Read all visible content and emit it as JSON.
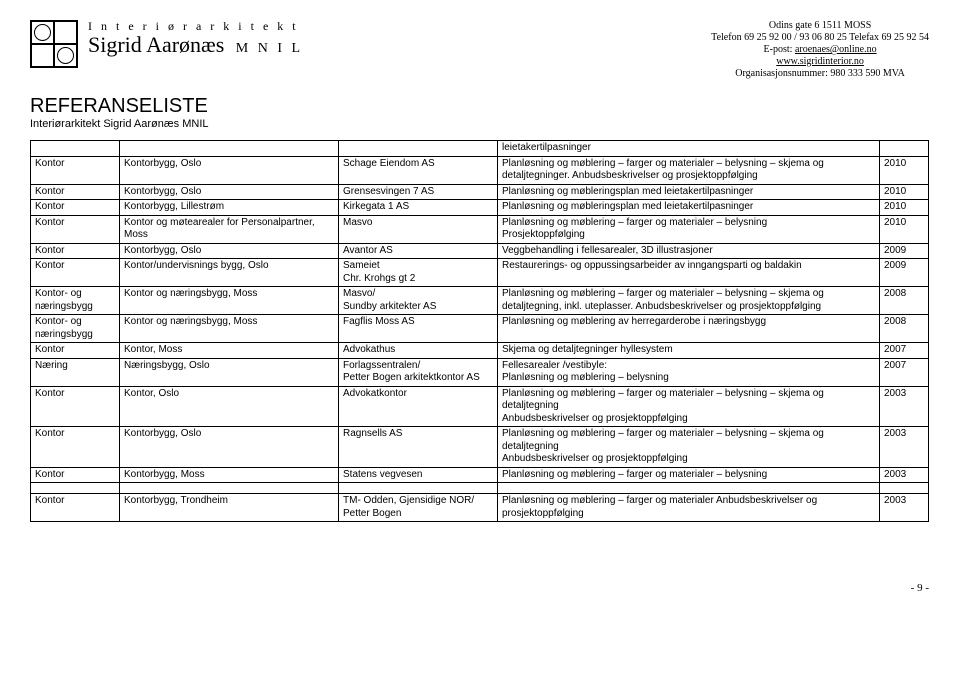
{
  "header": {
    "brand_top": "I n t e r i ø r a r k i t e k t",
    "brand_name": "Sigrid Aarønæs",
    "brand_suffix": "M N I L",
    "address": "Odins gate 6   1511 MOSS",
    "phone": "Telefon  69 25 92 00 / 93 06 80 25 Telefax  69 25 92 54",
    "email_label": "E-post:",
    "email": "aroenaes@online.no",
    "website": "www.sigridinterior.no",
    "orgnr": "Organisasjonsnummer: 980 333 590 MVA"
  },
  "title": "REFERANSELISTE",
  "subtitle": "Interiørarkitekt Sigrid Aarønæs MNIL",
  "lead_cell": "leietakertilpasninger",
  "rows": [
    {
      "type": "Kontor",
      "proj": "Kontorbygg, Oslo",
      "client": "Schage Eiendom AS",
      "desc": "Planløsning og møblering – farger og materialer – belysning – skjema og detaljtegninger. Anbudsbeskrivelser og prosjektoppfølging",
      "year": "2010"
    },
    {
      "type": "Kontor",
      "proj": "Kontorbygg, Oslo",
      "client": "Grensesvingen 7 AS",
      "desc": "Planløsning og møbleringsplan med leietakertilpasninger",
      "year": "2010"
    },
    {
      "type": "Kontor",
      "proj": "Kontorbygg, Lillestrøm",
      "client": "Kirkegata 1 AS",
      "desc": "Planløsning og møbleringsplan med leietakertilpasninger",
      "year": "2010"
    },
    {
      "type": "Kontor",
      "proj": "Kontor og møtearealer for Personalpartner, Moss",
      "client": "Masvo",
      "desc": "Planløsning og møblering – farger og materialer – belysning\nProsjektoppfølging",
      "year": "2010"
    },
    {
      "type": "Kontor",
      "proj": "Kontorbygg, Oslo",
      "client": "Avantor AS",
      "desc": "Veggbehandling i fellesarealer, 3D illustrasjoner",
      "year": "2009"
    },
    {
      "type": "Kontor",
      "proj": "Kontor/undervisnings bygg, Oslo",
      "client": "Sameiet\nChr. Krohgs gt 2",
      "desc": "Restaurerings- og oppussingsarbeider av inngangsparti og baldakin",
      "year": "2009"
    },
    {
      "type": "Kontor- og næringsbygg",
      "proj": "Kontor og næringsbygg, Moss",
      "client": "Masvo/\nSundby arkitekter AS",
      "desc": "Planløsning og møblering – farger og materialer – belysning – skjema og detaljtegning, inkl. uteplasser. Anbudsbeskrivelser og prosjektoppfølging",
      "year": "2008"
    },
    {
      "type": "Kontor- og næringsbygg",
      "proj": "Kontor og næringsbygg, Moss",
      "client": "Fagflis Moss AS",
      "desc": "Planløsning og møblering av herregarderobe i næringsbygg",
      "year": "2008"
    },
    {
      "type": "Kontor",
      "proj": "Kontor, Moss",
      "client": "Advokathus",
      "desc": "Skjema og detaljtegninger hyllesystem",
      "year": "2007"
    },
    {
      "type": "Næring",
      "proj": "Næringsbygg, Oslo",
      "client": "Forlagssentralen/\nPetter Bogen arkitektkontor AS",
      "desc": "Fellesarealer /vestibyle:\nPlanløsning og møblering – belysning",
      "year": "2007"
    },
    {
      "type": "Kontor",
      "proj": "Kontor, Oslo",
      "client": "Advokatkontor",
      "desc": "Planløsning og møblering – farger og materialer – belysning – skjema og detaljtegning\nAnbudsbeskrivelser og prosjektoppfølging",
      "year": "2003"
    },
    {
      "type": "Kontor",
      "proj": "Kontorbygg, Oslo",
      "client": "Ragnsells AS",
      "desc": "Planløsning og møblering – farger og materialer – belysning – skjema og detaljtegning\nAnbudsbeskrivelser og prosjektoppfølging",
      "year": "2003"
    },
    {
      "type": "Kontor",
      "proj": "Kontorbygg, Moss",
      "client": "Statens vegvesen",
      "desc": "Planløsning og møblering – farger og materialer – belysning",
      "year": "2003"
    },
    {
      "type": "Kontor",
      "proj": "Kontorbygg, Trondheim",
      "client": "TM- Odden, Gjensidige NOR/ Petter Bogen",
      "desc": "Planløsning og møblering – farger og materialer Anbudsbeskrivelser og prosjektoppfølging",
      "year": "2003"
    }
  ],
  "gap_after_index": 12,
  "page_number": "- 9 -"
}
